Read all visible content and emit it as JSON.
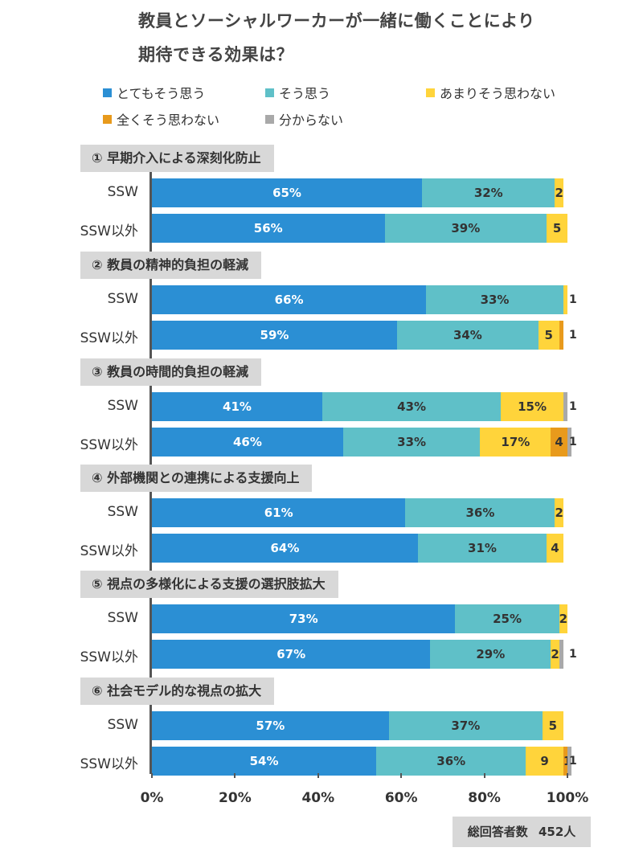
{
  "title_line1": "教員とソーシャルワーカーが一緒に働くことにより",
  "title_line2": "期待できる効果は？",
  "legend": [
    {
      "label": "とてもそう思う",
      "color": "#2b8fd4"
    },
    {
      "label": "そう思う",
      "color": "#5fc0c8"
    },
    {
      "label": "あまりそう思わない",
      "color": "#ffd43b"
    },
    {
      "label": "全くそう思わない",
      "color": "#e89a1c"
    },
    {
      "label": "分からない",
      "color": "#a9a9a9"
    }
  ],
  "note": {
    "label": "総回答者数",
    "value": "452人"
  },
  "chart_data": {
    "type": "bar",
    "orientation": "horizontal-stacked-100",
    "xlim": [
      0,
      100
    ],
    "xticks": [
      "0%",
      "20%",
      "40%",
      "60%",
      "80%",
      "100%"
    ],
    "series_names": [
      "とてもそう思う",
      "そう思う",
      "あまりそう思わない",
      "全くそう思わない",
      "分からない"
    ],
    "groups": [
      {
        "title": "① 早期介入による深刻化防止",
        "rows": [
          {
            "label": "SSW",
            "values": [
              65,
              32,
              2,
              0,
              0
            ],
            "labels": [
              "65%",
              "32%",
              "2",
              "",
              ""
            ]
          },
          {
            "label": "SSW以外",
            "values": [
              56,
              39,
              5,
              0,
              0
            ],
            "labels": [
              "56%",
              "39%",
              "5",
              "",
              ""
            ]
          }
        ]
      },
      {
        "title": "② 教員の精神的負担の軽減",
        "rows": [
          {
            "label": "SSW",
            "values": [
              66,
              33,
              1,
              0,
              0
            ],
            "labels": [
              "66%",
              "33%",
              "",
              "",
              ""
            ],
            "outside": "1"
          },
          {
            "label": "SSW以外",
            "values": [
              59,
              34,
              5,
              1,
              0
            ],
            "labels": [
              "59%",
              "34%",
              "5",
              "",
              ""
            ],
            "outside": "1"
          }
        ]
      },
      {
        "title": "③ 教員の時間的負担の軽減",
        "rows": [
          {
            "label": "SSW",
            "values": [
              41,
              43,
              15,
              0,
              1
            ],
            "labels": [
              "41%",
              "43%",
              "15%",
              "",
              ""
            ],
            "outside": "1"
          },
          {
            "label": "SSW以外",
            "values": [
              46,
              33,
              17,
              4,
              1
            ],
            "labels": [
              "46%",
              "33%",
              "17%",
              "4",
              ""
            ],
            "outside": "1"
          }
        ]
      },
      {
        "title": "④ 外部機関との連携による支援向上",
        "rows": [
          {
            "label": "SSW",
            "values": [
              61,
              36,
              2,
              0,
              0
            ],
            "labels": [
              "61%",
              "36%",
              "2",
              "",
              ""
            ]
          },
          {
            "label": "SSW以外",
            "values": [
              64,
              31,
              4,
              0,
              0
            ],
            "labels": [
              "64%",
              "31%",
              "4",
              "",
              ""
            ]
          }
        ]
      },
      {
        "title": "⑤ 視点の多様化による支援の選択肢拡大",
        "rows": [
          {
            "label": "SSW",
            "values": [
              73,
              25,
              2,
              0,
              0
            ],
            "labels": [
              "73%",
              "25%",
              "2",
              "",
              ""
            ]
          },
          {
            "label": "SSW以外",
            "values": [
              67,
              29,
              2,
              0,
              1
            ],
            "labels": [
              "67%",
              "29%",
              "2",
              "",
              ""
            ],
            "outside": "1"
          }
        ]
      },
      {
        "title": "⑥ 社会モデル的な視点の拡大",
        "rows": [
          {
            "label": "SSW",
            "values": [
              57,
              37,
              5,
              0,
              0
            ],
            "labels": [
              "57%",
              "37%",
              "5",
              "",
              ""
            ]
          },
          {
            "label": "SSW以外",
            "values": [
              54,
              36,
              9,
              1,
              1
            ],
            "labels": [
              "54%",
              "36%",
              "9",
              "1",
              ""
            ],
            "outside": "1"
          }
        ]
      }
    ]
  }
}
